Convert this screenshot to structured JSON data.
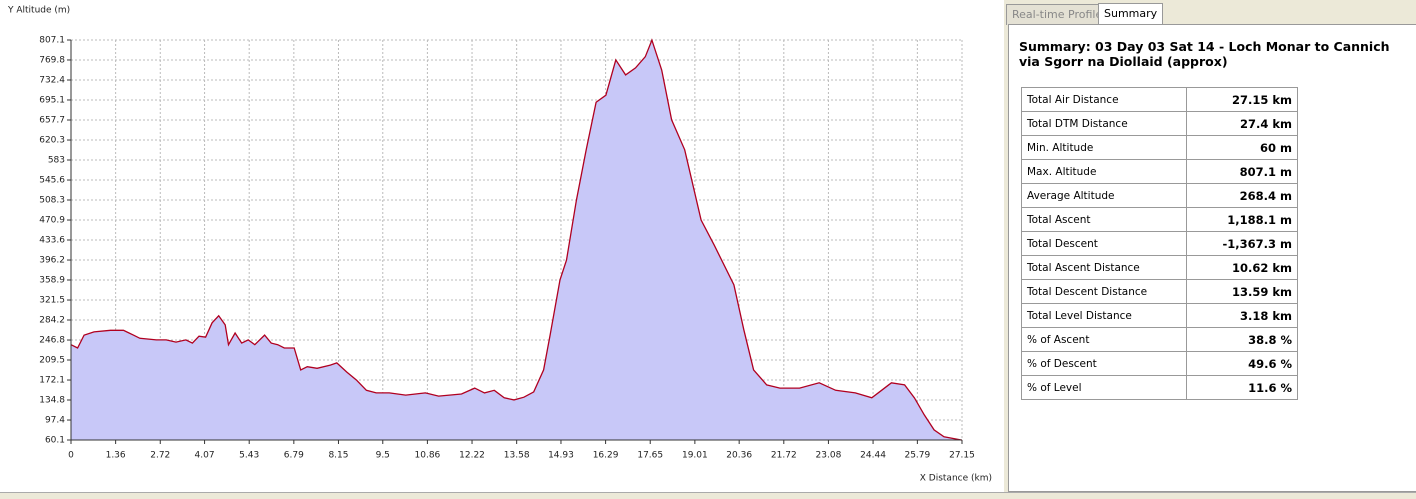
{
  "chart_data": {
    "type": "area",
    "y_label": "Y Altitude (m)",
    "x_label": "X Distance (km)",
    "x": [
      0,
      0.2,
      0.4,
      0.7,
      1.2,
      1.6,
      1.9,
      2.1,
      2.6,
      2.9,
      3.2,
      3.5,
      3.7,
      3.9,
      4.1,
      4.3,
      4.5,
      4.7,
      4.8,
      5.0,
      5.2,
      5.4,
      5.6,
      5.9,
      6.1,
      6.3,
      6.5,
      6.8,
      7.0,
      7.2,
      7.5,
      7.9,
      8.1,
      8.4,
      8.7,
      9.0,
      9.3,
      9.7,
      10.2,
      10.8,
      11.2,
      11.9,
      12.3,
      12.6,
      12.9,
      13.2,
      13.5,
      13.8,
      14.1,
      14.4,
      14.6,
      14.9,
      15.1,
      15.4,
      15.7,
      16.0,
      16.3,
      16.6,
      16.9,
      17.2,
      17.5,
      17.7,
      18.0,
      18.3,
      18.7,
      19.2,
      19.6,
      20.2,
      20.5,
      20.8,
      21.2,
      21.6,
      22.2,
      22.8,
      23.3,
      23.9,
      24.4,
      24.7,
      25.0,
      25.4,
      25.7,
      26.0,
      26.3,
      26.6,
      27.15
    ],
    "values": [
      238,
      232,
      256,
      262,
      265,
      265,
      256,
      250,
      247,
      247,
      243,
      247,
      241,
      254,
      252,
      279,
      292,
      275,
      238,
      260,
      241,
      247,
      238,
      256,
      241,
      238,
      232,
      232,
      191,
      197,
      194,
      200,
      204,
      187,
      172,
      153,
      148,
      148,
      144,
      148,
      142,
      146,
      157,
      148,
      153,
      139,
      135,
      140,
      150,
      191,
      256,
      359,
      396,
      508,
      602,
      691,
      704,
      770,
      742,
      755,
      776,
      807,
      751,
      658,
      602,
      471,
      424,
      350,
      266,
      191,
      163,
      157,
      157,
      167,
      153,
      148,
      139,
      153,
      167,
      163,
      139,
      107,
      79,
      66,
      60
    ],
    "fill": "#c8c8f8",
    "color": "#b00020",
    "grid": true,
    "xlim": [
      0,
      27.15
    ],
    "ylim": [
      60.1,
      807.1
    ],
    "xticks": [
      0,
      1.36,
      2.72,
      4.07,
      5.43,
      6.79,
      8.15,
      9.5,
      10.86,
      12.22,
      13.58,
      14.93,
      16.29,
      17.65,
      19.01,
      20.36,
      21.72,
      23.08,
      24.44,
      25.79,
      27.15
    ],
    "yticks": [
      60.1,
      97.4,
      134.8,
      172.1,
      209.5,
      246.8,
      284.2,
      321.5,
      358.9,
      396.2,
      433.6,
      470.9,
      508.3,
      545.6,
      583,
      620.3,
      657.7,
      695.1,
      732.4,
      769.8,
      807.1
    ]
  },
  "tabs": [
    "Real-time Profile",
    "Summary"
  ],
  "summary": {
    "title": "Summary: 03 Day 03 Sat 14 - Loch Monar to Cannich via Sgorr na Diollaid (approx)",
    "rows": [
      [
        "Total Air Distance",
        "27.15 km"
      ],
      [
        "Total DTM Distance",
        "27.4 km"
      ],
      [
        "Min. Altitude",
        "60 m"
      ],
      [
        "Max. Altitude",
        "807.1 m"
      ],
      [
        "Average Altitude",
        "268.4 m"
      ],
      [
        "Total Ascent",
        "1,188.1 m"
      ],
      [
        "Total Descent",
        "-1,367.3 m"
      ],
      [
        "Total Ascent Distance",
        "10.62 km"
      ],
      [
        "Total Descent Distance",
        "13.59 km"
      ],
      [
        "Total Level Distance",
        "3.18 km"
      ],
      [
        "% of Ascent",
        "38.8 %"
      ],
      [
        "% of Descent",
        "49.6 %"
      ],
      [
        "% of Level",
        "11.6 %"
      ]
    ]
  }
}
